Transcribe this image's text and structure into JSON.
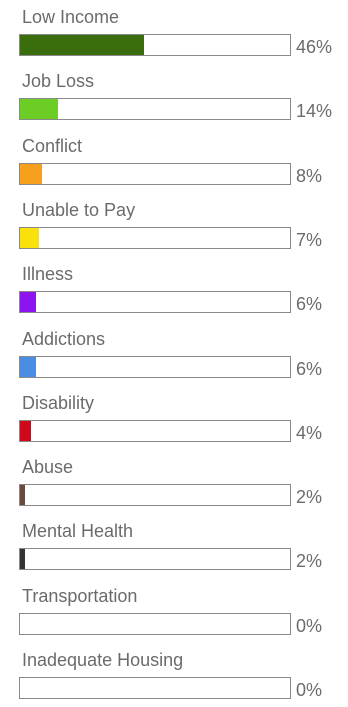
{
  "chart_data": {
    "type": "bar",
    "orientation": "horizontal",
    "categories": [
      "Low Income",
      "Job Loss",
      "Conflict",
      "Unable to Pay",
      "Illness",
      "Addictions",
      "Disability",
      "Abuse",
      "Mental Health",
      "Transportation",
      "Inadequate Housing"
    ],
    "values": [
      46,
      14,
      8,
      7,
      6,
      6,
      4,
      2,
      2,
      0,
      0
    ],
    "value_labels": [
      "46%",
      "14%",
      "8%",
      "7%",
      "6%",
      "6%",
      "4%",
      "2%",
      "2%",
      "0%",
      "0%"
    ],
    "colors": [
      "#3a6e0d",
      "#6ccd25",
      "#f7a01e",
      "#f8e10d",
      "#8e14ef",
      "#4a8ee3",
      "#d0081b",
      "#6b4a3c",
      "#333333",
      "#ffffff",
      "#ffffff"
    ],
    "xlim": [
      0,
      100
    ],
    "grid": false
  }
}
